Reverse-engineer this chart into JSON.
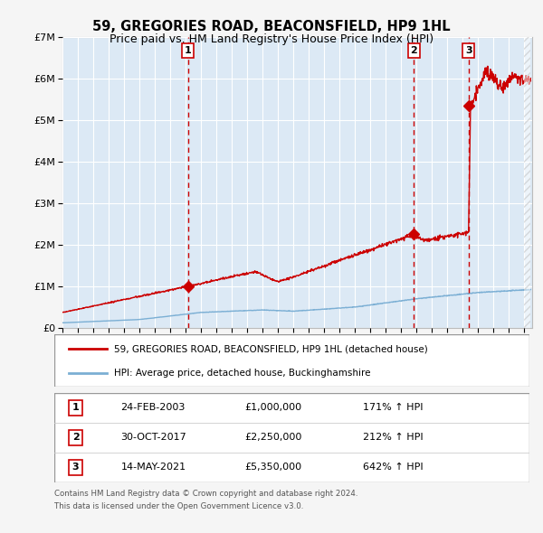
{
  "title": "59, GREGORIES ROAD, BEACONSFIELD, HP9 1HL",
  "subtitle": "Price paid vs. HM Land Registry's House Price Index (HPI)",
  "fig_bg_color": "#f5f5f5",
  "plot_bg_color": "#dce9f5",
  "red_line_color": "#cc0000",
  "blue_line_color": "#7bafd4",
  "grid_color": "#ffffff",
  "sale_points": [
    {
      "date_num": 2003.14,
      "price": 1000000,
      "label": "1"
    },
    {
      "date_num": 2017.83,
      "price": 2250000,
      "label": "2"
    },
    {
      "date_num": 2021.37,
      "price": 5350000,
      "label": "3"
    }
  ],
  "vline_color": "#cc0000",
  "annotation_box_color": "#cc0000",
  "ylim": [
    0,
    7000000
  ],
  "xlim_left": 1995,
  "xlim_right": 2025.5,
  "yticks": [
    0,
    1000000,
    2000000,
    3000000,
    4000000,
    5000000,
    6000000,
    7000000
  ],
  "ytick_labels": [
    "£0",
    "£1M",
    "£2M",
    "£3M",
    "£4M",
    "£5M",
    "£6M",
    "£7M"
  ],
  "legend_red_label": "59, GREGORIES ROAD, BEACONSFIELD, HP9 1HL (detached house)",
  "legend_blue_label": "HPI: Average price, detached house, Buckinghamshire",
  "table_data": [
    {
      "num": "1",
      "date": "24-FEB-2003",
      "price": "£1,000,000",
      "hpi": "171% ↑ HPI"
    },
    {
      "num": "2",
      "date": "30-OCT-2017",
      "price": "£2,250,000",
      "hpi": "212% ↑ HPI"
    },
    {
      "num": "3",
      "date": "14-MAY-2021",
      "price": "£5,350,000",
      "hpi": "642% ↑ HPI"
    }
  ],
  "footer_line1": "Contains HM Land Registry data © Crown copyright and database right 2024.",
  "footer_line2": "This data is licensed under the Open Government Licence v3.0."
}
